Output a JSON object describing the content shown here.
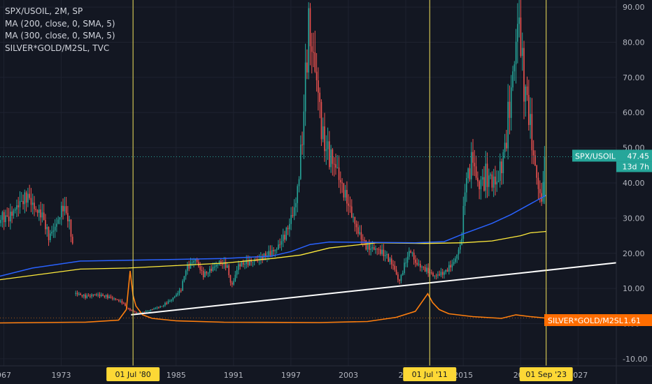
{
  "legend": {
    "main": "SPX/USOIL, 2M, SP",
    "ma200": "MA (200, close, 0, SMA, 5)",
    "ma300": "MA (300, close, 0, SMA, 5)",
    "overlay": "SILVER*GOLD/M2SL, TVC"
  },
  "price_tag": {
    "symbol": "SPX/USOIL",
    "value": "47.45",
    "countdown": "13d 7h"
  },
  "overlay_tag": {
    "symbol": "SILVER*GOLD/M2SL",
    "value": "1.61"
  },
  "colors": {
    "background": "#131722",
    "grid": "#1e2230",
    "axis_text": "#b2b5be",
    "up": "#26a69a",
    "down": "#ef5350",
    "ma200": "#2962ff",
    "ma300": "#ffeb3b",
    "overlay": "#ff7f0e",
    "trendline": "#ffffff",
    "vline": "#f3e35c",
    "price_tag": "#26a69a",
    "overlay_tag": "#ff6d00",
    "date_tag": "#fdd835"
  },
  "chart_data": {
    "type": "candlestick",
    "x_axis": {
      "range": [
        1966.6,
        2031.0
      ],
      "ticks": [
        "967",
        "1973",
        "1985",
        "1991",
        "1997",
        "2003",
        "200",
        "2015",
        "202",
        "2027"
      ]
    },
    "y_axis": {
      "range": [
        -12,
        92
      ],
      "ticks": [
        "90.00",
        "80.00",
        "70.00",
        "60.00",
        "50.00",
        "40.00",
        "30.00",
        "20.00",
        "10.00",
        "0.00",
        "-10.00"
      ]
    },
    "markers": [
      {
        "label": "01 Jul '80",
        "x": 1980.5
      },
      {
        "label": "01 Jul '11",
        "x": 2011.5
      },
      {
        "label": "01 Sep '23",
        "x": 2023.67
      }
    ],
    "price_anchors": [
      [
        1966.6,
        31
      ],
      [
        1967.5,
        30
      ],
      [
        1968.5,
        33
      ],
      [
        1969.5,
        35
      ],
      [
        1970.3,
        31
      ],
      [
        1971,
        30
      ],
      [
        1971.7,
        24
      ],
      [
        1972.5,
        28
      ],
      [
        1973.2,
        34
      ],
      [
        1973.8,
        30
      ],
      [
        1974.2,
        23
      ],
      [
        1974.5,
        9
      ],
      [
        1975.5,
        8
      ],
      [
        1976.5,
        8.5
      ],
      [
        1977.5,
        8
      ],
      [
        1978.5,
        7
      ],
      [
        1979.3,
        6
      ],
      [
        1980,
        4
      ],
      [
        1980.8,
        3
      ],
      [
        1981.5,
        3
      ],
      [
        1982.5,
        4
      ],
      [
        1983.5,
        5
      ],
      [
        1984.5,
        7
      ],
      [
        1985.5,
        10
      ],
      [
        1986,
        16
      ],
      [
        1987,
        19
      ],
      [
        1987.8,
        14
      ],
      [
        1988.5,
        15
      ],
      [
        1989.5,
        17
      ],
      [
        1990.3,
        16
      ],
      [
        1990.8,
        10
      ],
      [
        1991.5,
        16
      ],
      [
        1992.5,
        17
      ],
      [
        1993.5,
        18
      ],
      [
        1994.5,
        20
      ],
      [
        1995.5,
        22
      ],
      [
        1996.5,
        27
      ],
      [
        1997.5,
        35
      ],
      [
        1998.2,
        55
      ],
      [
        1998.8,
        85
      ],
      [
        1999.3,
        75
      ],
      [
        1999.8,
        65
      ],
      [
        2000.3,
        50
      ],
      [
        2001,
        45
      ],
      [
        2002,
        40
      ],
      [
        2003,
        33
      ],
      [
        2004,
        26
      ],
      [
        2005,
        22
      ],
      [
        2006,
        22
      ],
      [
        2007,
        20
      ],
      [
        2007.7,
        17
      ],
      [
        2008.3,
        12
      ],
      [
        2009,
        18
      ],
      [
        2009.5,
        21
      ],
      [
        2010,
        17
      ],
      [
        2011,
        15
      ],
      [
        2012,
        13
      ],
      [
        2013,
        14
      ],
      [
        2014,
        17
      ],
      [
        2014.8,
        23
      ],
      [
        2015.2,
        40
      ],
      [
        2016,
        50
      ],
      [
        2016.5,
        42
      ],
      [
        2017.5,
        45
      ],
      [
        2018.5,
        42
      ],
      [
        2019.3,
        50
      ],
      [
        2020.2,
        70
      ],
      [
        2020.8,
        85
      ],
      [
        2021.3,
        65
      ],
      [
        2021.8,
        58
      ],
      [
        2022.3,
        45
      ],
      [
        2022.8,
        38
      ],
      [
        2023.2,
        33
      ],
      [
        2023.5,
        47.45
      ]
    ],
    "gaps": [
      [
        1974.2,
        1974.5
      ]
    ],
    "ma200": [
      [
        1966.6,
        13.5
      ],
      [
        1970,
        15.8
      ],
      [
        1975,
        17.8
      ],
      [
        1980,
        18.0
      ],
      [
        1990,
        18.5
      ],
      [
        1995,
        19.2
      ],
      [
        1997,
        20.5
      ],
      [
        1999,
        22.5
      ],
      [
        2001,
        23.2
      ],
      [
        2010,
        23.0
      ],
      [
        2013,
        23.3
      ],
      [
        2015,
        25.5
      ],
      [
        2018,
        28.5
      ],
      [
        2020,
        31.0
      ],
      [
        2022,
        34.0
      ],
      [
        2023.67,
        36.5
      ]
    ],
    "ma300": [
      [
        1966.6,
        12.5
      ],
      [
        1975,
        15.5
      ],
      [
        1980,
        15.8
      ],
      [
        1985,
        16.5
      ],
      [
        1990,
        17.2
      ],
      [
        1995,
        18.5
      ],
      [
        1998,
        19.5
      ],
      [
        2001,
        21.5
      ],
      [
        2006,
        23.0
      ],
      [
        2011,
        22.8
      ],
      [
        2015,
        23.0
      ],
      [
        2018,
        23.5
      ],
      [
        2021,
        25.0
      ],
      [
        2022,
        25.8
      ],
      [
        2023.67,
        26.2
      ]
    ],
    "overlay_series": [
      [
        1966.6,
        0.2
      ],
      [
        1974.5,
        0.4
      ],
      [
        1975.5,
        0.4
      ],
      [
        1979,
        1.0
      ],
      [
        1979.8,
        4.0
      ],
      [
        1980.2,
        15.0
      ],
      [
        1980.5,
        8.0
      ],
      [
        1980.8,
        5.0
      ],
      [
        1981.5,
        2.5
      ],
      [
        1982.5,
        1.5
      ],
      [
        1985,
        0.8
      ],
      [
        1990,
        0.4
      ],
      [
        2000,
        0.3
      ],
      [
        2005,
        0.6
      ],
      [
        2008,
        1.8
      ],
      [
        2010,
        3.5
      ],
      [
        2011.3,
        8.5
      ],
      [
        2011.8,
        6.0
      ],
      [
        2012.5,
        4.0
      ],
      [
        2013.5,
        2.8
      ],
      [
        2016,
        2.0
      ],
      [
        2019,
        1.5
      ],
      [
        2020.5,
        2.5
      ],
      [
        2022,
        2.0
      ],
      [
        2023.5,
        1.61
      ]
    ],
    "trendline": [
      [
        1980.3,
        2.5
      ],
      [
        2031.0,
        17.3
      ]
    ],
    "last_value": 47.45,
    "overlay_last_value": 1.61
  }
}
